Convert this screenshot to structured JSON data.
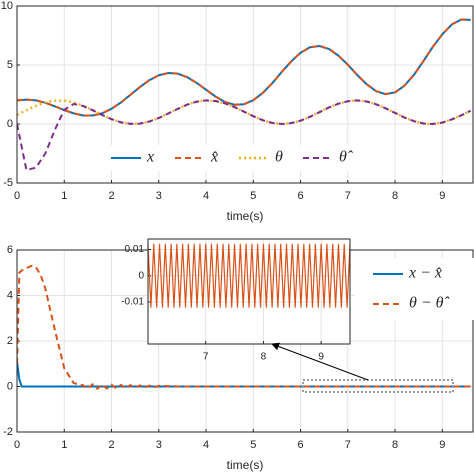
{
  "chart_data": [
    {
      "type": "line",
      "xlabel": "time(s)",
      "xlim": [
        0,
        9.65
      ],
      "ylim": [
        -5,
        10
      ],
      "xticks": [
        0,
        1,
        2,
        3,
        4,
        5,
        6,
        7,
        8,
        9
      ],
      "yticks": [
        -5,
        0,
        5,
        10
      ],
      "grid": true,
      "legend": "lower center",
      "x": [
        0,
        0.2,
        0.4,
        0.6,
        0.8,
        1,
        1.2,
        1.4,
        1.6,
        1.8,
        2,
        2.2,
        2.4,
        2.6,
        2.8,
        3,
        3.2,
        3.4,
        3.6,
        3.8,
        4,
        4.2,
        4.4,
        4.6,
        4.8,
        5,
        5.2,
        5.4,
        5.6,
        5.8,
        6,
        6.2,
        6.4,
        6.6,
        6.8,
        7,
        7.2,
        7.4,
        7.6,
        7.8,
        8,
        8.2,
        8.4,
        8.6,
        8.8,
        9,
        9.2,
        9.4,
        9.6
      ],
      "series": [
        {
          "name": "x",
          "color": "#0072bd",
          "dash": "solid",
          "values": [
            2,
            2.07,
            2,
            1.8,
            1.5,
            1.18,
            0.9,
            0.72,
            0.72,
            0.9,
            1.29,
            1.83,
            2.47,
            3.13,
            3.71,
            4.13,
            4.32,
            4.27,
            3.97,
            3.49,
            2.91,
            2.33,
            1.87,
            1.63,
            1.67,
            2.02,
            2.63,
            3.45,
            4.4,
            5.29,
            6.04,
            6.5,
            6.61,
            6.36,
            5.8,
            5.03,
            4.16,
            3.37,
            2.78,
            2.53,
            2.68,
            3.25,
            4.17,
            5.32,
            6.54,
            7.6,
            8.43,
            8.86,
            8.82
          ]
        },
        {
          "name": "x̂",
          "color": "#d95319",
          "dash": "dashed",
          "values": [
            2,
            2.07,
            2,
            1.8,
            1.5,
            1.18,
            0.9,
            0.72,
            0.72,
            0.9,
            1.29,
            1.83,
            2.47,
            3.13,
            3.71,
            4.13,
            4.32,
            4.27,
            3.97,
            3.49,
            2.91,
            2.33,
            1.87,
            1.63,
            1.67,
            2.02,
            2.63,
            3.45,
            4.4,
            5.29,
            6.04,
            6.5,
            6.61,
            6.36,
            5.8,
            5.03,
            4.16,
            3.37,
            2.78,
            2.53,
            2.68,
            3.25,
            4.17,
            5.32,
            6.54,
            7.6,
            8.43,
            8.86,
            8.82
          ]
        },
        {
          "name": "θ",
          "color": "#edb120",
          "dash": "dotted",
          "values": [
            0.77,
            1.17,
            1.54,
            1.83,
            1.98,
            1.98,
            1.83,
            1.54,
            1.17,
            0.77,
            0.41,
            0.14,
            0.01,
            0.03,
            0.21,
            0.51,
            0.89,
            1.28,
            1.64,
            1.89,
            2,
            1.95,
            1.75,
            1.44,
            1.05,
            0.66,
            0.32,
            0.09,
            0,
            0.07,
            0.28,
            0.61,
            1,
            1.4,
            1.72,
            1.93,
            2,
            1.91,
            1.67,
            1.33,
            0.94,
            0.55,
            0.24,
            0.04,
            0,
            0.12,
            0.39,
            0.73,
            1.12
          ]
        },
        {
          "name": "θ̂",
          "color": "#7e2f8e",
          "dash": "dashed",
          "values": [
            0,
            -3.9,
            -3.7,
            -2.5,
            -0.5,
            1.2,
            1.7,
            1.52,
            1.17,
            0.77,
            0.41,
            0.14,
            0.01,
            0.03,
            0.21,
            0.51,
            0.89,
            1.28,
            1.64,
            1.89,
            2,
            1.95,
            1.75,
            1.44,
            1.05,
            0.66,
            0.32,
            0.09,
            0,
            0.07,
            0.28,
            0.61,
            1,
            1.4,
            1.72,
            1.93,
            2,
            1.91,
            1.67,
            1.33,
            0.94,
            0.55,
            0.24,
            0.04,
            0,
            0.12,
            0.39,
            0.73,
            1.12
          ]
        }
      ]
    },
    {
      "type": "line",
      "xlabel": "time(s)",
      "xlim": [
        0,
        9.65
      ],
      "ylim": [
        -2,
        6
      ],
      "xticks": [
        0,
        1,
        2,
        3,
        4,
        5,
        6,
        7,
        8,
        9
      ],
      "yticks": [
        -2,
        0,
        2,
        4,
        6
      ],
      "grid": true,
      "legend": "upper right",
      "x": [
        0,
        0.05,
        0.1,
        0.2,
        0.3,
        0.4,
        0.5,
        0.6,
        0.8,
        1,
        1.2,
        1.4,
        1.5,
        1.6,
        1.7,
        1.8,
        1.9,
        2,
        2.1,
        2.2,
        2.3,
        2.4,
        2.5,
        2.6,
        2.7,
        2.8,
        2.9,
        3,
        3.5,
        4,
        4.5,
        5,
        5.5,
        6,
        6.5,
        7,
        7.5,
        8,
        8.5,
        9,
        9.5,
        9.6
      ],
      "series": [
        {
          "name": "x − x̂",
          "color": "#0072bd",
          "dash": "solid",
          "values": [
            1.1,
            0.3,
            0,
            0,
            0,
            0,
            0,
            0,
            0,
            0,
            0,
            0,
            0,
            0,
            0,
            0,
            0,
            0,
            0,
            0,
            0,
            0,
            0,
            0,
            0,
            0,
            0,
            0,
            0,
            0,
            0,
            0,
            0,
            0,
            0,
            0,
            0,
            0,
            0,
            0,
            0,
            0
          ]
        },
        {
          "name": "θ − θ̂",
          "color": "#d95319",
          "dash": "dashed",
          "values": [
            1,
            5,
            5.1,
            5.2,
            5.3,
            5.25,
            4.9,
            4.3,
            2.5,
            0.8,
            0.15,
            0.05,
            -0.1,
            0.1,
            -0.1,
            0.09,
            -0.09,
            0.08,
            -0.08,
            0.07,
            -0.07,
            0.06,
            -0.06,
            0.05,
            -0.05,
            0.04,
            -0.04,
            0.03,
            0,
            0,
            0,
            0,
            0,
            0,
            0,
            0,
            0,
            0,
            0,
            0,
            0,
            0
          ]
        }
      ]
    },
    {
      "type": "line",
      "xlim": [
        6,
        9.5
      ],
      "ylim": [
        -0.026,
        0.014
      ],
      "xticks": [
        7,
        8,
        9
      ],
      "yticks": [
        0.01,
        0,
        -0.01
      ],
      "grid": true,
      "x": [
        6,
        6.05,
        6.1,
        6.15,
        6.2,
        6.25,
        6.3,
        6.35,
        6.4,
        6.45,
        6.5,
        6.55,
        6.6,
        6.65,
        6.7,
        6.75,
        6.8,
        6.85,
        6.9,
        6.95,
        7,
        7.05,
        7.1,
        7.15,
        7.2,
        7.25,
        7.3,
        7.35,
        7.4,
        7.45,
        7.5,
        7.55,
        7.6,
        7.65,
        7.7,
        7.75,
        7.8,
        7.85,
        7.9,
        7.95,
        8,
        8.05,
        8.1,
        8.15,
        8.2,
        8.25,
        8.3,
        8.35,
        8.4,
        8.45,
        8.5,
        8.55,
        8.6,
        8.65,
        8.7,
        8.75,
        8.8,
        8.85,
        8.9,
        8.95,
        9,
        9.05,
        9.1,
        9.15,
        9.2,
        9.25,
        9.3,
        9.35,
        9.4,
        9.45,
        9.5
      ],
      "series": [
        {
          "color": "#d95319",
          "dash": "solid",
          "values": [
            0.012,
            -0.012,
            0.012,
            -0.012,
            0.012,
            -0.012,
            0.012,
            -0.012,
            0.012,
            -0.012,
            0.012,
            -0.012,
            0.012,
            -0.012,
            0.012,
            -0.012,
            0.012,
            -0.012,
            0.012,
            -0.012,
            0.012,
            -0.012,
            0.012,
            -0.012,
            0.012,
            -0.012,
            0.012,
            -0.012,
            0.012,
            -0.012,
            0.012,
            -0.012,
            0.012,
            -0.012,
            0.012,
            -0.012,
            0.012,
            -0.012,
            0.012,
            -0.012,
            0.012,
            -0.012,
            0.012,
            -0.012,
            0.012,
            -0.012,
            0.012,
            -0.012,
            0.012,
            -0.012,
            0.012,
            -0.012,
            0.012,
            -0.012,
            0.012,
            -0.012,
            0.012,
            -0.012,
            0.012,
            -0.012,
            0.012,
            -0.012,
            0.012,
            -0.012,
            0.012,
            -0.012,
            0.012,
            -0.012,
            0.012,
            -0.012,
            0.012
          ]
        }
      ]
    }
  ]
}
